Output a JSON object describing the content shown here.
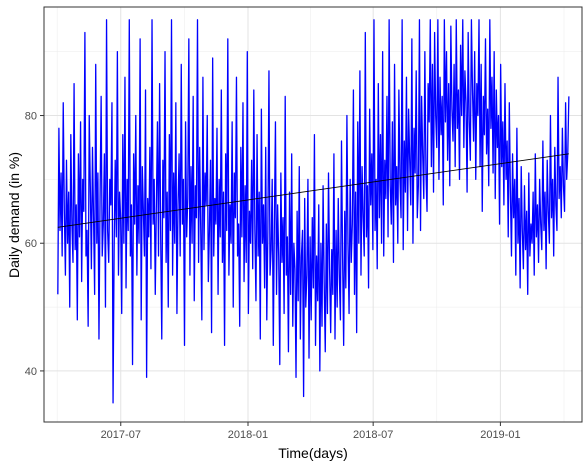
{
  "chart_data": {
    "type": "line",
    "title": "",
    "xlabel": "Time(days)",
    "ylabel": "Daily demand (in %)",
    "x_range": [
      "2017-03-12",
      "2019-04-29"
    ],
    "ylim": [
      32,
      97
    ],
    "x_ticks": [
      {
        "date": "2017-07-01",
        "label": "2017-07"
      },
      {
        "date": "2018-01-01",
        "label": "2018-01"
      },
      {
        "date": "2018-07-01",
        "label": "2018-07"
      },
      {
        "date": "2019-01-01",
        "label": "2019-01"
      }
    ],
    "y_ticks": [
      40,
      60,
      80
    ],
    "grid": true,
    "series": [
      {
        "color": "#0000ff",
        "x_start": "2017-04-01",
        "x_end": "2019-04-10",
        "values": [
          52,
          78,
          62,
          71,
          58,
          82,
          65,
          55,
          73,
          60,
          68,
          50,
          77,
          63,
          57,
          85,
          59,
          66,
          48,
          74,
          61,
          79,
          54,
          70,
          65,
          93,
          58,
          62,
          47,
          80,
          69,
          56,
          75,
          64,
          52,
          88,
          60,
          71,
          45,
          67,
          83,
          58,
          63,
          74,
          50,
          95,
          62,
          57,
          70,
          66,
          82,
          35,
          59,
          73,
          61,
          90,
          55,
          68,
          64,
          49,
          77,
          60,
          86,
          53,
          70,
          62,
          95,
          58,
          66,
          41,
          74,
          63,
          80,
          55,
          69,
          60,
          92,
          48,
          72,
          65,
          58,
          84,
          39,
          67,
          61,
          75,
          56,
          95,
          63,
          70,
          52,
          66,
          79,
          58,
          85,
          61,
          45,
          73,
          64,
          90,
          57,
          68,
          50,
          77,
          62,
          95,
          55,
          71,
          60,
          82,
          49,
          66,
          74,
          58,
          88,
          63,
          70,
          44,
          79,
          61,
          67,
          92,
          55,
          72,
          60,
          83,
          51,
          69,
          64,
          95,
          57,
          75,
          62,
          48,
          86,
          59,
          71,
          66,
          80,
          54,
          62,
          73,
          46,
          89,
          58,
          67,
          63,
          78,
          52,
          70,
          61,
          84,
          57,
          68,
          44,
          74,
          62,
          92,
          55,
          66,
          60,
          79,
          50,
          71,
          64,
          86,
          58,
          63,
          47,
          75,
          61,
          82,
          54,
          69,
          57,
          90,
          49,
          65,
          60,
          73,
          56,
          84,
          62,
          51,
          77,
          58,
          68,
          45,
          81,
          60,
          66,
          53,
          75,
          48,
          62,
          87,
          55,
          59,
          70,
          44,
          63,
          79,
          52,
          66,
          58,
          41,
          71,
          57,
          64,
          49,
          83,
          55,
          61,
          43,
          68,
          52,
          74,
          47,
          60,
          56,
          39,
          65,
          51,
          72,
          45,
          58,
          62,
          36,
          67,
          50,
          55,
          70,
          42,
          61,
          48,
          64,
          53,
          77,
          44,
          58,
          51,
          66,
          40,
          60,
          47,
          69,
          54,
          43,
          63,
          49,
          71,
          56,
          46,
          59,
          52,
          74,
          45,
          62,
          50,
          67,
          55,
          48,
          76,
          58,
          44,
          65,
          53,
          80,
          60,
          49,
          70,
          57,
          63,
          84,
          52,
          68,
          46,
          79,
          60,
          87,
          55,
          72,
          64,
          58,
          93,
          61,
          69,
          53,
          81,
          66,
          74,
          59,
          95,
          62,
          70,
          56,
          85,
          64,
          77,
          60,
          90,
          58,
          73,
          67,
          83,
          61,
          95,
          69,
          63,
          79,
          57,
          88,
          66,
          72,
          60,
          84,
          70,
          64,
          95,
          59,
          76,
          68,
          86,
          62,
          81,
          73,
          66,
          92,
          60,
          78,
          71,
          87,
          64,
          69,
          95,
          62,
          83,
          74,
          67,
          90,
          71,
          65,
          85,
          79,
          95,
          72,
          88,
          68,
          93,
          80,
          75,
          95,
          70,
          86,
          77,
          83,
          66,
          95,
          79,
          90,
          73,
          85,
          69,
          94,
          81,
          76,
          88,
          72,
          95,
          78,
          84,
          70,
          91,
          80,
          95,
          75,
          87,
          82,
          68,
          93,
          79,
          73,
          95,
          84,
          76,
          90,
          70,
          85,
          80,
          95,
          72,
          88,
          65,
          83,
          77,
          92,
          74,
          81,
          69,
          95,
          78,
          86,
          71,
          90,
          67,
          84,
          75,
          80,
          63,
          88,
          72,
          79,
          66,
          85,
          70,
          76,
          61,
          82,
          68,
          58,
          74,
          64,
          70,
          55,
          78,
          60,
          67,
          53,
          72,
          62,
          56,
          69,
          59,
          65,
          52,
          71,
          58,
          63,
          60,
          68,
          55,
          74,
          61,
          66,
          57,
          70,
          63,
          59,
          76,
          62,
          68,
          56,
          73,
          65,
          60,
          80,
          64,
          70,
          58,
          75,
          66,
          62,
          86,
          67,
          72,
          64,
          78,
          69,
          65,
          82,
          70,
          74,
          83
        ]
      },
      {
        "color": "#000000",
        "x_start": "2017-04-01",
        "x_end": "2019-04-10",
        "values": [
          62.5,
          74.0
        ]
      }
    ]
  }
}
